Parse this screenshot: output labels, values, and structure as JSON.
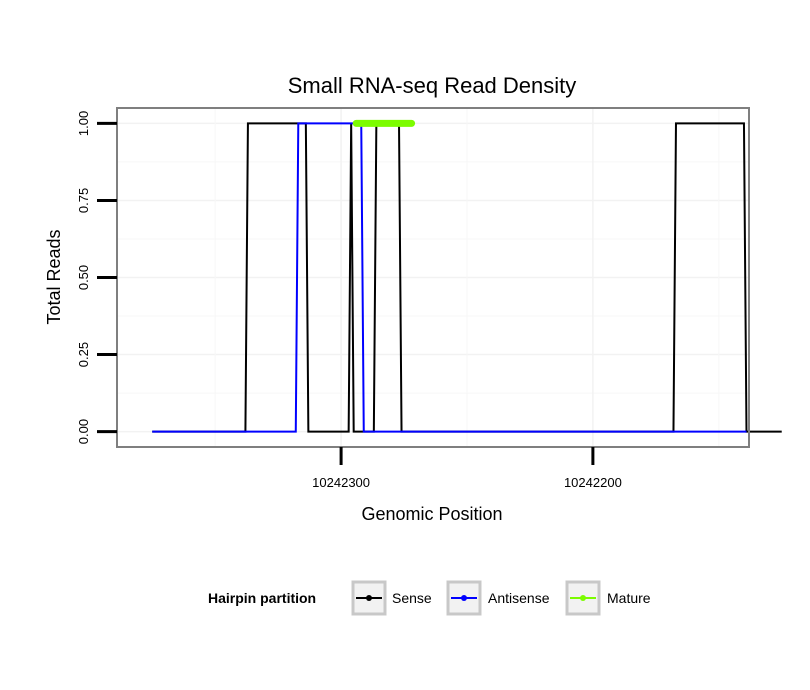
{
  "chart_data": {
    "type": "line",
    "title": "Small RNA-seq Read Density",
    "xlabel": "Genomic Position",
    "ylabel": "Total Reads",
    "x_reversed": true,
    "xlim": [
      10242389,
      10242138
    ],
    "ylim": [
      -0.05,
      1.05
    ],
    "x_ticks": [
      {
        "value": 10242300,
        "label": "10242300"
      },
      {
        "value": 10242200,
        "label": "10242200"
      }
    ],
    "y_ticks": [
      {
        "value": 0,
        "label": "0.00"
      },
      {
        "value": 0.25,
        "label": "0.25"
      },
      {
        "value": 0.5,
        "label": "0.50"
      },
      {
        "value": 0.75,
        "label": "0.75"
      },
      {
        "value": 1,
        "label": "1.00"
      }
    ],
    "legend": {
      "title": "Hairpin partition",
      "position": "bottom",
      "entries": [
        "Sense",
        "Antisense",
        "Mature"
      ]
    },
    "series": [
      {
        "name": "Sense",
        "color": "#000000",
        "points": [
          [
            10242375,
            0
          ],
          [
            10242338,
            0
          ],
          [
            10242337,
            1
          ],
          [
            10242314,
            1
          ],
          [
            10242313,
            0
          ],
          [
            10242297,
            0
          ],
          [
            10242296,
            1
          ],
          [
            10242296,
            1
          ],
          [
            10242295,
            0
          ],
          [
            10242287,
            0
          ],
          [
            10242286,
            1
          ],
          [
            10242277,
            1
          ],
          [
            10242276,
            0
          ],
          [
            10242168,
            0
          ],
          [
            10242167,
            1
          ],
          [
            10242140,
            1
          ],
          [
            10242139,
            0
          ],
          [
            10242125,
            0
          ]
        ]
      },
      {
        "name": "Antisense",
        "color": "#0000ff",
        "points": [
          [
            10242375,
            0
          ],
          [
            10242318,
            0
          ],
          [
            10242317,
            1
          ],
          [
            10242292,
            1
          ],
          [
            10242291,
            0
          ],
          [
            10242168,
            0
          ],
          [
            10242167,
            0
          ],
          [
            10242139,
            0
          ]
        ]
      },
      {
        "name": "Mature",
        "color": "#7cfc00",
        "points": [
          [
            10242294,
            1
          ],
          [
            10242272,
            1
          ]
        ]
      }
    ]
  }
}
